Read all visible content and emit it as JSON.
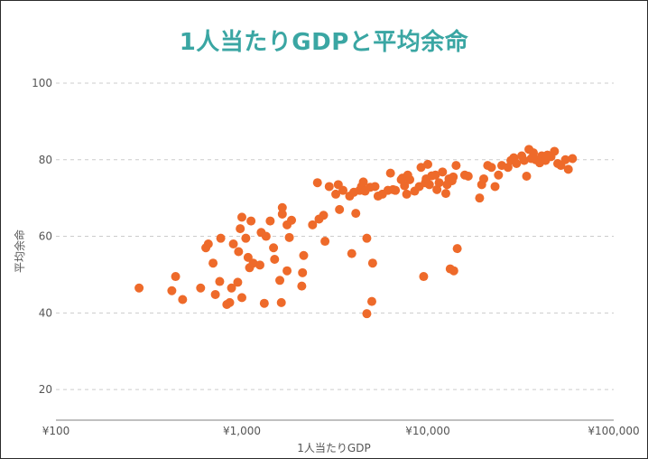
{
  "colors": {
    "title": "#3aa6a3",
    "point": "#ee6a2a",
    "grid": "#cccccc",
    "axis": "#c0c0c0"
  },
  "chart_data": {
    "type": "scatter",
    "title": "1人当たりGDPと平均余命",
    "xlabel": "1人当たりGDP",
    "ylabel": "平均余命",
    "x_scale": "log",
    "xlim": [
      100,
      100000
    ],
    "ylim": [
      12,
      100
    ],
    "x_ticks": [
      {
        "value": 100,
        "label": "¥100"
      },
      {
        "value": 1000,
        "label": "¥1,000"
      },
      {
        "value": 10000,
        "label": "¥10,000"
      },
      {
        "value": 100000,
        "label": "¥100,000"
      }
    ],
    "y_ticks": [
      {
        "value": 20,
        "label": "20"
      },
      {
        "value": 40,
        "label": "40"
      },
      {
        "value": 60,
        "label": "60"
      },
      {
        "value": 80,
        "label": "80"
      },
      {
        "value": 100,
        "label": "100"
      }
    ],
    "grid": "horizontal-dashed",
    "points": [
      [
        280,
        46.5
      ],
      [
        420,
        45.8
      ],
      [
        440,
        49.5
      ],
      [
        480,
        43.5
      ],
      [
        600,
        46.5
      ],
      [
        640,
        57
      ],
      [
        660,
        58
      ],
      [
        700,
        53
      ],
      [
        720,
        44.8
      ],
      [
        760,
        48.2
      ],
      [
        770,
        59.5
      ],
      [
        830,
        42.2
      ],
      [
        860,
        42.7
      ],
      [
        880,
        46.5
      ],
      [
        900,
        58
      ],
      [
        950,
        48
      ],
      [
        960,
        56
      ],
      [
        980,
        62
      ],
      [
        1000,
        44
      ],
      [
        1000,
        65
      ],
      [
        1050,
        59.5
      ],
      [
        1080,
        54.5
      ],
      [
        1100,
        51.8
      ],
      [
        1120,
        64
      ],
      [
        1150,
        53
      ],
      [
        1250,
        52.5
      ],
      [
        1270,
        61
      ],
      [
        1320,
        42.5
      ],
      [
        1350,
        60
      ],
      [
        1420,
        64
      ],
      [
        1480,
        57
      ],
      [
        1500,
        54
      ],
      [
        1600,
        48.5
      ],
      [
        1630,
        42.7
      ],
      [
        1650,
        65.8
      ],
      [
        1650,
        67.5
      ],
      [
        1750,
        51
      ],
      [
        1750,
        63
      ],
      [
        1800,
        59.7
      ],
      [
        1850,
        64.2
      ],
      [
        2100,
        47
      ],
      [
        2120,
        50.5
      ],
      [
        2150,
        55
      ],
      [
        2400,
        63
      ],
      [
        2550,
        74
      ],
      [
        2600,
        64.5
      ],
      [
        2750,
        65.5
      ],
      [
        2800,
        58.7
      ],
      [
        2950,
        73
      ],
      [
        3200,
        71
      ],
      [
        3300,
        73.5
      ],
      [
        3350,
        67
      ],
      [
        3500,
        72
      ],
      [
        3800,
        70.5
      ],
      [
        3900,
        55.5
      ],
      [
        4000,
        71.5
      ],
      [
        4100,
        66
      ],
      [
        4300,
        72
      ],
      [
        4400,
        73
      ],
      [
        4500,
        74.2
      ],
      [
        4600,
        71.8
      ],
      [
        4700,
        39.8
      ],
      [
        4700,
        59.5
      ],
      [
        4900,
        72.8
      ],
      [
        5000,
        43
      ],
      [
        5050,
        53
      ],
      [
        5200,
        73
      ],
      [
        5400,
        70.5
      ],
      [
        5700,
        71
      ],
      [
        6100,
        72
      ],
      [
        6300,
        76.5
      ],
      [
        6500,
        72.2
      ],
      [
        6700,
        72
      ],
      [
        7200,
        74.8
      ],
      [
        7300,
        75.2
      ],
      [
        7500,
        73.2
      ],
      [
        7700,
        71
      ],
      [
        7800,
        76
      ],
      [
        8000,
        74.8
      ],
      [
        8500,
        71.8
      ],
      [
        9000,
        73
      ],
      [
        9200,
        78
      ],
      [
        9500,
        49.5
      ],
      [
        9700,
        74
      ],
      [
        9800,
        75
      ],
      [
        10000,
        78.8
      ],
      [
        10200,
        73.5
      ],
      [
        10500,
        75.8
      ],
      [
        11000,
        76
      ],
      [
        11200,
        72.2
      ],
      [
        11500,
        74
      ],
      [
        12000,
        76.8
      ],
      [
        12500,
        71.2
      ],
      [
        12700,
        73.5
      ],
      [
        13000,
        75
      ],
      [
        13200,
        51.5
      ],
      [
        13500,
        74.5
      ],
      [
        13700,
        75.5
      ],
      [
        13800,
        51
      ],
      [
        14200,
        78.5
      ],
      [
        14400,
        56.8
      ],
      [
        15800,
        76
      ],
      [
        16500,
        75.7
      ],
      [
        19000,
        70
      ],
      [
        19500,
        73.5
      ],
      [
        20000,
        75
      ],
      [
        21000,
        78.5
      ],
      [
        22000,
        78
      ],
      [
        23000,
        73
      ],
      [
        24000,
        76
      ],
      [
        25000,
        78.5
      ],
      [
        27000,
        78
      ],
      [
        28000,
        79.8
      ],
      [
        29000,
        80.5
      ],
      [
        30000,
        79
      ],
      [
        32000,
        81
      ],
      [
        33000,
        79.8
      ],
      [
        34000,
        75.7
      ],
      [
        35000,
        82.7
      ],
      [
        36000,
        80.3
      ],
      [
        37000,
        81.8
      ],
      [
        38000,
        80
      ],
      [
        40000,
        79.2
      ],
      [
        41000,
        81
      ],
      [
        43000,
        79.8
      ],
      [
        44000,
        81.2
      ],
      [
        46000,
        80.8
      ],
      [
        48000,
        82.2
      ],
      [
        50000,
        79
      ],
      [
        52000,
        78.5
      ],
      [
        55000,
        80
      ],
      [
        57000,
        77.5
      ],
      [
        60000,
        80.3
      ]
    ]
  }
}
